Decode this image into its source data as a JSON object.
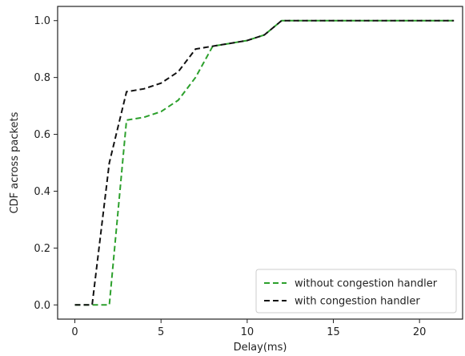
{
  "chart_data": {
    "type": "line",
    "title": "",
    "xlabel": "Delay(ms)",
    "ylabel": "CDF across packets",
    "xlim": [
      -1,
      22.5
    ],
    "ylim": [
      -0.05,
      1.05
    ],
    "xticks": [
      0,
      5,
      10,
      15,
      20
    ],
    "yticks": [
      0.0,
      0.2,
      0.4,
      0.6,
      0.8,
      1.0
    ],
    "xtick_labels": [
      "0",
      "5",
      "10",
      "15",
      "20"
    ],
    "ytick_labels": [
      "0.0",
      "0.2",
      "0.4",
      "0.6",
      "0.8",
      "1.0"
    ],
    "grid": false,
    "legend_position": "lower right",
    "series": [
      {
        "name": "without congestion handler",
        "color": "#2ca02c",
        "linestyle": "dashed",
        "x": [
          0,
          1,
          2,
          3,
          4,
          5,
          6,
          7,
          8,
          9,
          10,
          11,
          12,
          13,
          14,
          15,
          16,
          17,
          18,
          19,
          20,
          21,
          22
        ],
        "y": [
          0.0,
          0.0,
          0.0,
          0.65,
          0.66,
          0.68,
          0.72,
          0.8,
          0.91,
          0.92,
          0.93,
          0.95,
          1.0,
          1.0,
          1.0,
          1.0,
          1.0,
          1.0,
          1.0,
          1.0,
          1.0,
          1.0,
          1.0
        ]
      },
      {
        "name": "with congestion handler",
        "color": "#111111",
        "linestyle": "dashed",
        "x": [
          0,
          1,
          2,
          3,
          4,
          5,
          6,
          7,
          8,
          9,
          10,
          11,
          12,
          13,
          14,
          15,
          16,
          17,
          18,
          19,
          20,
          21,
          22
        ],
        "y": [
          0.0,
          0.0,
          0.5,
          0.75,
          0.76,
          0.78,
          0.82,
          0.9,
          0.91,
          0.92,
          0.93,
          0.95,
          1.0,
          1.0,
          1.0,
          1.0,
          1.0,
          1.0,
          1.0,
          1.0,
          1.0,
          1.0,
          1.0
        ]
      }
    ]
  }
}
